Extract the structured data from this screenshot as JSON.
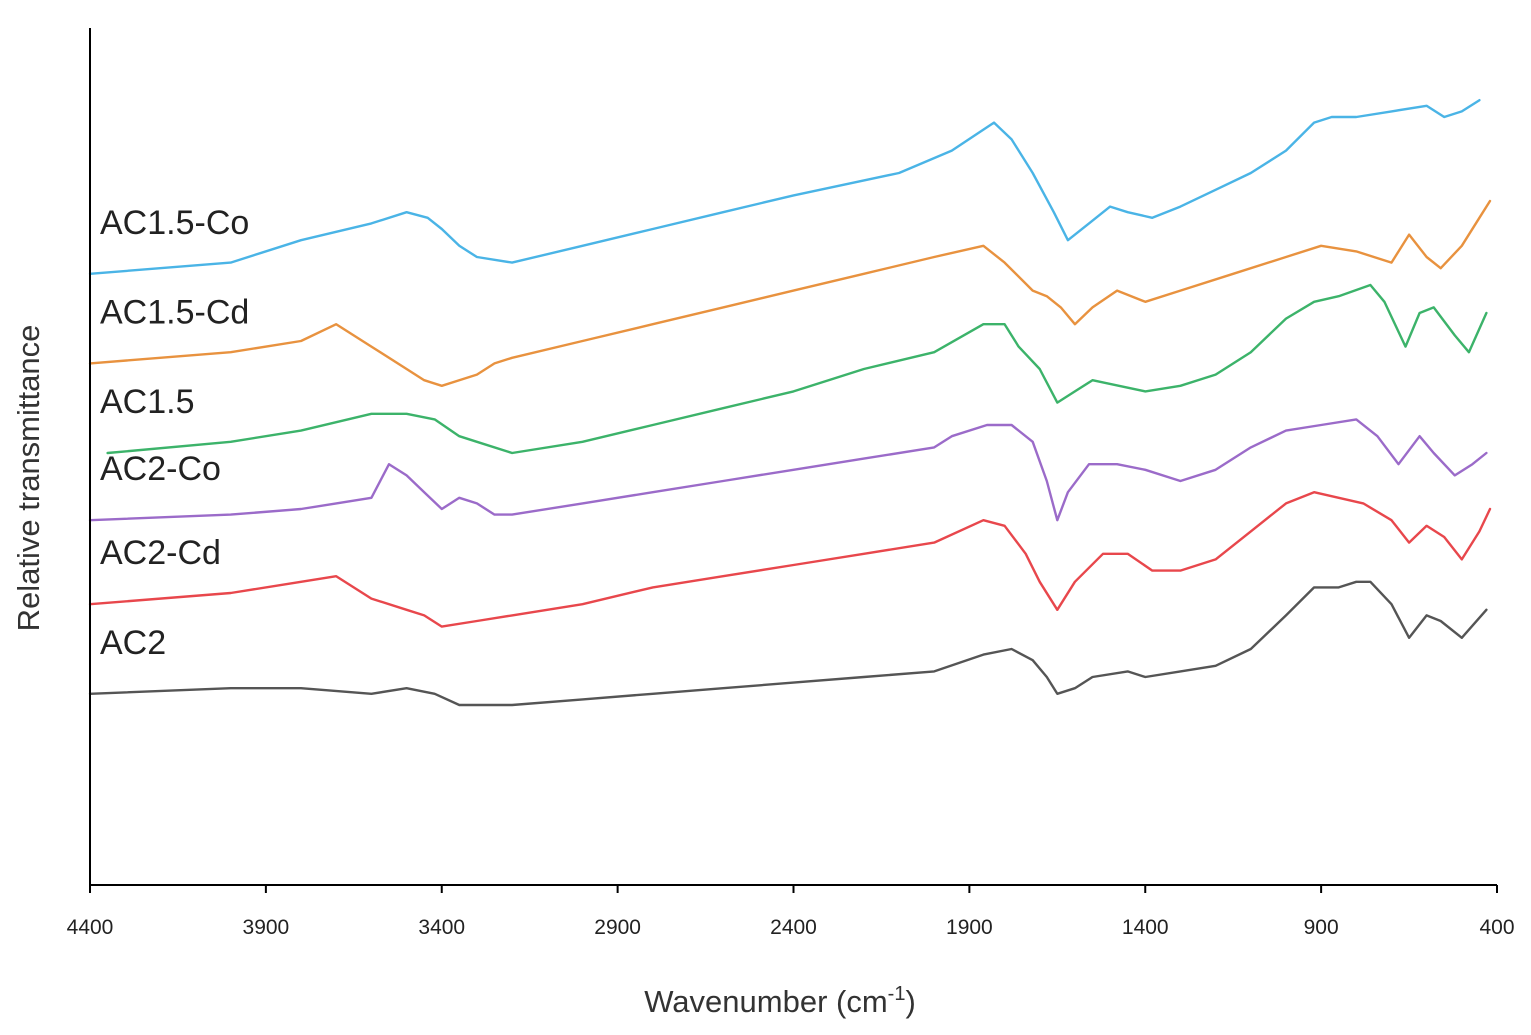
{
  "chart_data": {
    "type": "line",
    "title": "",
    "xlabel": "Wavenumber (cm",
    "xlabel_superscript": "-1",
    "xlabel_suffix": ")",
    "ylabel": "Relative transmittance",
    "xlim": [
      4400,
      400
    ],
    "x_reversed": true,
    "y_ticks_shown": false,
    "xticks": [
      "4400",
      "3900",
      "3400",
      "2900",
      "2400",
      "1900",
      "1400",
      "900",
      "400"
    ],
    "grid": false,
    "legend": "labels placed beside each curve at the left",
    "series": [
      {
        "name": "AC1.5-Co",
        "color": "#4ab4e6",
        "points": [
          [
            4400,
            0.77
          ],
          [
            4000,
            0.79
          ],
          [
            3800,
            0.83
          ],
          [
            3600,
            0.86
          ],
          [
            3500,
            0.88
          ],
          [
            3440,
            0.87
          ],
          [
            3400,
            0.85
          ],
          [
            3350,
            0.82
          ],
          [
            3300,
            0.8
          ],
          [
            3200,
            0.79
          ],
          [
            3000,
            0.82
          ],
          [
            2800,
            0.85
          ],
          [
            2600,
            0.88
          ],
          [
            2400,
            0.91
          ],
          [
            2100,
            0.95
          ],
          [
            1950,
            0.99
          ],
          [
            1830,
            1.04
          ],
          [
            1780,
            1.01
          ],
          [
            1720,
            0.95
          ],
          [
            1660,
            0.88
          ],
          [
            1620,
            0.83
          ],
          [
            1560,
            0.86
          ],
          [
            1500,
            0.89
          ],
          [
            1450,
            0.88
          ],
          [
            1380,
            0.87
          ],
          [
            1300,
            0.89
          ],
          [
            1200,
            0.92
          ],
          [
            1100,
            0.95
          ],
          [
            1000,
            0.99
          ],
          [
            920,
            1.04
          ],
          [
            870,
            1.05
          ],
          [
            800,
            1.05
          ],
          [
            700,
            1.06
          ],
          [
            600,
            1.07
          ],
          [
            550,
            1.05
          ],
          [
            500,
            1.06
          ],
          [
            450,
            1.08
          ]
        ]
      },
      {
        "name": "AC1.5-Cd",
        "color": "#e8923f",
        "points": [
          [
            4400,
            0.61
          ],
          [
            4000,
            0.63
          ],
          [
            3800,
            0.65
          ],
          [
            3700,
            0.68
          ],
          [
            3600,
            0.64
          ],
          [
            3500,
            0.6
          ],
          [
            3450,
            0.58
          ],
          [
            3400,
            0.57
          ],
          [
            3300,
            0.59
          ],
          [
            3250,
            0.61
          ],
          [
            3200,
            0.62
          ],
          [
            3000,
            0.65
          ],
          [
            2800,
            0.68
          ],
          [
            2600,
            0.71
          ],
          [
            2400,
            0.74
          ],
          [
            2200,
            0.77
          ],
          [
            2000,
            0.8
          ],
          [
            1860,
            0.82
          ],
          [
            1800,
            0.79
          ],
          [
            1720,
            0.74
          ],
          [
            1680,
            0.73
          ],
          [
            1640,
            0.71
          ],
          [
            1600,
            0.68
          ],
          [
            1550,
            0.71
          ],
          [
            1480,
            0.74
          ],
          [
            1400,
            0.72
          ],
          [
            1300,
            0.74
          ],
          [
            1150,
            0.77
          ],
          [
            1000,
            0.8
          ],
          [
            900,
            0.82
          ],
          [
            800,
            0.81
          ],
          [
            700,
            0.79
          ],
          [
            650,
            0.84
          ],
          [
            600,
            0.8
          ],
          [
            560,
            0.78
          ],
          [
            500,
            0.82
          ],
          [
            450,
            0.87
          ],
          [
            420,
            0.9
          ]
        ]
      },
      {
        "name": "AC1.5",
        "color": "#3cb36a",
        "points": [
          [
            4350,
            0.45
          ],
          [
            4000,
            0.47
          ],
          [
            3800,
            0.49
          ],
          [
            3600,
            0.52
          ],
          [
            3500,
            0.52
          ],
          [
            3420,
            0.51
          ],
          [
            3350,
            0.48
          ],
          [
            3300,
            0.47
          ],
          [
            3200,
            0.45
          ],
          [
            3000,
            0.47
          ],
          [
            2800,
            0.5
          ],
          [
            2600,
            0.53
          ],
          [
            2400,
            0.56
          ],
          [
            2200,
            0.6
          ],
          [
            2000,
            0.63
          ],
          [
            1860,
            0.68
          ],
          [
            1800,
            0.68
          ],
          [
            1760,
            0.64
          ],
          [
            1700,
            0.6
          ],
          [
            1650,
            0.54
          ],
          [
            1600,
            0.56
          ],
          [
            1550,
            0.58
          ],
          [
            1400,
            0.56
          ],
          [
            1300,
            0.57
          ],
          [
            1200,
            0.59
          ],
          [
            1100,
            0.63
          ],
          [
            1000,
            0.69
          ],
          [
            920,
            0.72
          ],
          [
            850,
            0.73
          ],
          [
            760,
            0.75
          ],
          [
            720,
            0.72
          ],
          [
            660,
            0.64
          ],
          [
            620,
            0.7
          ],
          [
            580,
            0.71
          ],
          [
            520,
            0.66
          ],
          [
            480,
            0.63
          ],
          [
            430,
            0.7
          ]
        ]
      },
      {
        "name": "AC2-Co",
        "color": "#9b6bc9",
        "points": [
          [
            4400,
            0.33
          ],
          [
            4000,
            0.34
          ],
          [
            3800,
            0.35
          ],
          [
            3700,
            0.36
          ],
          [
            3600,
            0.37
          ],
          [
            3550,
            0.43
          ],
          [
            3500,
            0.41
          ],
          [
            3450,
            0.38
          ],
          [
            3400,
            0.35
          ],
          [
            3350,
            0.37
          ],
          [
            3300,
            0.36
          ],
          [
            3250,
            0.34
          ],
          [
            3200,
            0.34
          ],
          [
            3000,
            0.36
          ],
          [
            2800,
            0.38
          ],
          [
            2600,
            0.4
          ],
          [
            2400,
            0.42
          ],
          [
            2200,
            0.44
          ],
          [
            2000,
            0.46
          ],
          [
            1950,
            0.48
          ],
          [
            1850,
            0.5
          ],
          [
            1780,
            0.5
          ],
          [
            1720,
            0.47
          ],
          [
            1680,
            0.4
          ],
          [
            1650,
            0.33
          ],
          [
            1620,
            0.38
          ],
          [
            1560,
            0.43
          ],
          [
            1480,
            0.43
          ],
          [
            1400,
            0.42
          ],
          [
            1300,
            0.4
          ],
          [
            1200,
            0.42
          ],
          [
            1100,
            0.46
          ],
          [
            1000,
            0.49
          ],
          [
            900,
            0.5
          ],
          [
            800,
            0.51
          ],
          [
            740,
            0.48
          ],
          [
            680,
            0.43
          ],
          [
            620,
            0.48
          ],
          [
            580,
            0.45
          ],
          [
            520,
            0.41
          ],
          [
            470,
            0.43
          ],
          [
            430,
            0.45
          ]
        ]
      },
      {
        "name": "AC2-Cd",
        "color": "#e8474c",
        "points": [
          [
            4400,
            0.18
          ],
          [
            4000,
            0.2
          ],
          [
            3800,
            0.22
          ],
          [
            3700,
            0.23
          ],
          [
            3600,
            0.19
          ],
          [
            3500,
            0.17
          ],
          [
            3450,
            0.16
          ],
          [
            3400,
            0.14
          ],
          [
            3300,
            0.15
          ],
          [
            3200,
            0.16
          ],
          [
            3000,
            0.18
          ],
          [
            2800,
            0.21
          ],
          [
            2600,
            0.23
          ],
          [
            2400,
            0.25
          ],
          [
            2200,
            0.27
          ],
          [
            2000,
            0.29
          ],
          [
            1860,
            0.33
          ],
          [
            1800,
            0.32
          ],
          [
            1740,
            0.27
          ],
          [
            1700,
            0.22
          ],
          [
            1650,
            0.17
          ],
          [
            1600,
            0.22
          ],
          [
            1520,
            0.27
          ],
          [
            1450,
            0.27
          ],
          [
            1380,
            0.24
          ],
          [
            1300,
            0.24
          ],
          [
            1200,
            0.26
          ],
          [
            1100,
            0.31
          ],
          [
            1000,
            0.36
          ],
          [
            920,
            0.38
          ],
          [
            850,
            0.37
          ],
          [
            780,
            0.36
          ],
          [
            700,
            0.33
          ],
          [
            650,
            0.29
          ],
          [
            600,
            0.32
          ],
          [
            550,
            0.3
          ],
          [
            500,
            0.26
          ],
          [
            450,
            0.31
          ],
          [
            420,
            0.35
          ]
        ]
      },
      {
        "name": "AC2",
        "color": "#555555",
        "points": [
          [
            4400,
            0.02
          ],
          [
            4000,
            0.03
          ],
          [
            3800,
            0.03
          ],
          [
            3600,
            0.02
          ],
          [
            3500,
            0.03
          ],
          [
            3420,
            0.02
          ],
          [
            3350,
            0.0
          ],
          [
            3200,
            0.0
          ],
          [
            3000,
            0.01
          ],
          [
            2800,
            0.02
          ],
          [
            2600,
            0.03
          ],
          [
            2400,
            0.04
          ],
          [
            2200,
            0.05
          ],
          [
            2000,
            0.06
          ],
          [
            1860,
            0.09
          ],
          [
            1780,
            0.1
          ],
          [
            1720,
            0.08
          ],
          [
            1680,
            0.05
          ],
          [
            1650,
            0.02
          ],
          [
            1600,
            0.03
          ],
          [
            1550,
            0.05
          ],
          [
            1450,
            0.06
          ],
          [
            1400,
            0.05
          ],
          [
            1300,
            0.06
          ],
          [
            1200,
            0.07
          ],
          [
            1100,
            0.1
          ],
          [
            1000,
            0.16
          ],
          [
            920,
            0.21
          ],
          [
            850,
            0.21
          ],
          [
            800,
            0.22
          ],
          [
            760,
            0.22
          ],
          [
            700,
            0.18
          ],
          [
            650,
            0.12
          ],
          [
            600,
            0.16
          ],
          [
            560,
            0.15
          ],
          [
            500,
            0.12
          ],
          [
            430,
            0.17
          ]
        ]
      }
    ]
  }
}
